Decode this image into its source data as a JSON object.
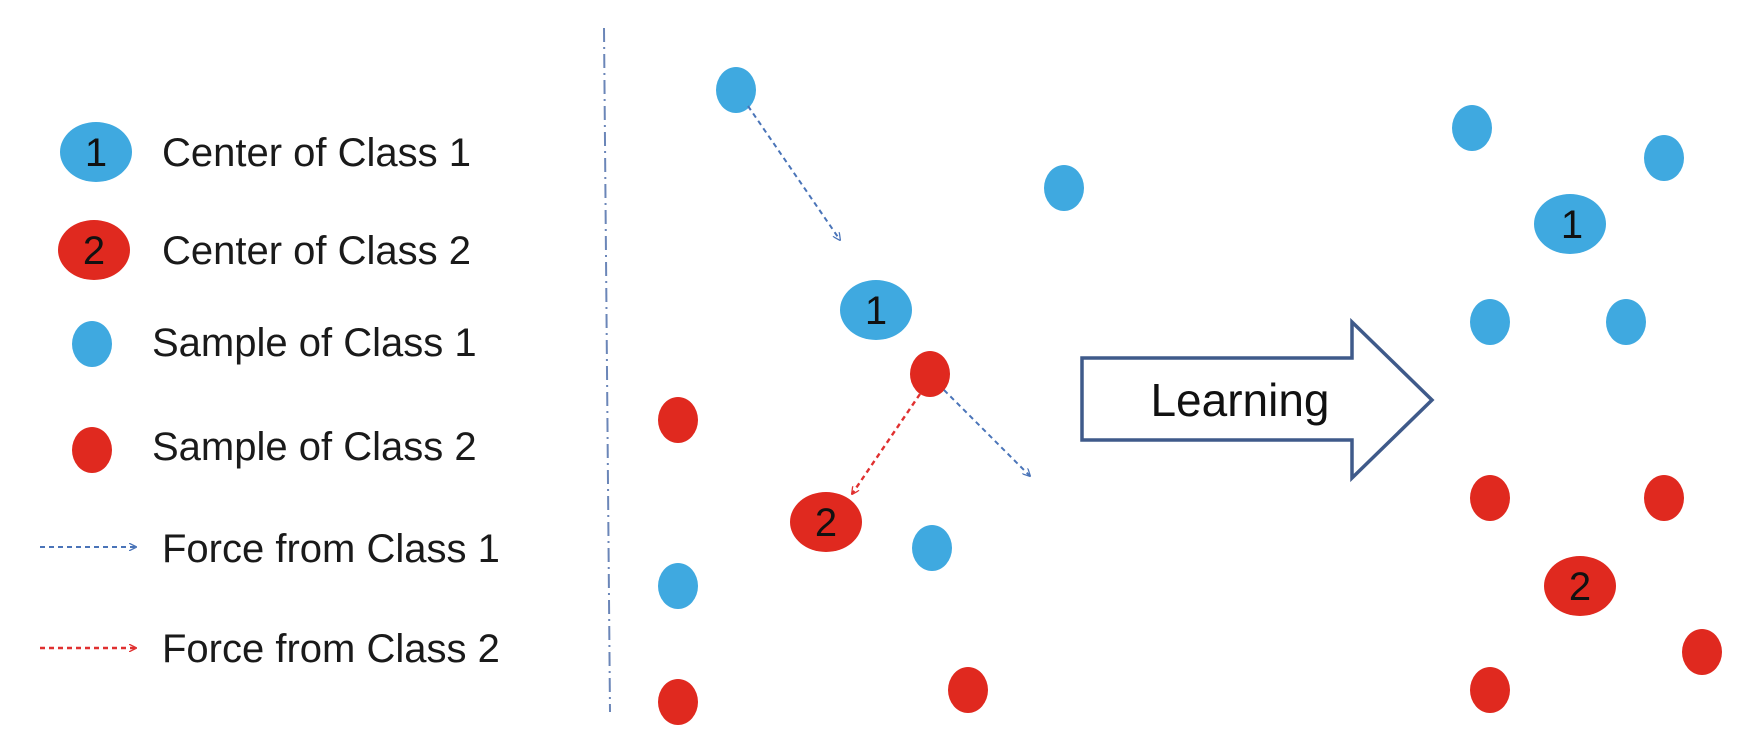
{
  "colors": {
    "class1": "#3fa9e0",
    "class2": "#e0291f",
    "force1": "#4a74b8",
    "force2": "#e03030",
    "arrow_outline": "#3f5a8a",
    "divider": "#6b86b8"
  },
  "legend": {
    "center_class1": {
      "marker": "1",
      "label": "Center of Class 1"
    },
    "center_class2": {
      "marker": "2",
      "label": "Center of Class 2"
    },
    "sample_class1": {
      "label": "Sample of Class 1"
    },
    "sample_class2": {
      "label": "Sample of Class 2"
    },
    "force_class1": {
      "label": "Force from Class 1"
    },
    "force_class2": {
      "label": "Force from Class 2"
    }
  },
  "before": {
    "center1_label": "1",
    "center2_label": "2"
  },
  "process_arrow": {
    "label": "Learning"
  },
  "after": {
    "center1_label": "1",
    "center2_label": "2"
  }
}
